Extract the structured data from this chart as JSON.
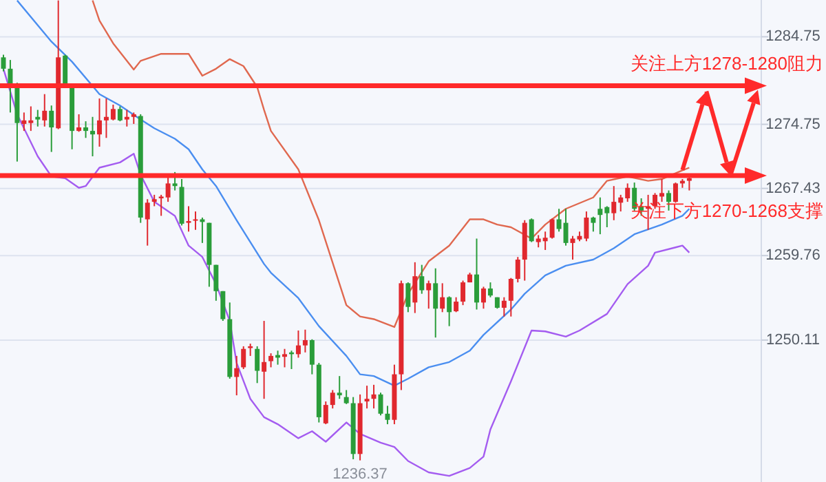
{
  "chart_data": {
    "type": "candlestick",
    "categories": [
      null,
      null,
      null,
      null,
      null,
      null,
      null,
      null,
      null,
      null,
      null,
      null,
      null,
      null,
      null,
      null,
      null,
      null,
      null,
      null,
      null,
      null,
      null,
      null,
      null,
      null,
      null,
      null,
      null,
      null,
      null,
      null,
      null,
      null,
      null,
      null,
      null,
      null,
      null,
      null,
      null,
      null,
      null,
      null,
      null,
      null,
      null,
      null,
      null,
      null,
      null,
      null,
      null,
      null,
      null,
      null,
      null,
      null,
      null,
      null,
      null,
      null,
      null,
      null,
      null,
      null,
      null,
      null,
      null,
      null,
      null,
      null,
      null,
      null,
      null,
      null,
      null,
      null,
      null,
      null,
      null,
      null,
      null,
      null,
      null,
      null,
      null,
      null,
      null,
      null,
      null,
      null,
      null,
      null,
      null,
      null,
      null,
      null,
      null,
      null,
      null
    ],
    "ohlc": [
      [
        1282.4,
        1282.7,
        1280.8,
        1281.1
      ],
      [
        1281.1,
        1282.1,
        1276.1,
        1279.3
      ],
      [
        1279.1,
        1279.5,
        1270.5,
        1274.9
      ],
      [
        1274.8,
        1276.1,
        1274.0,
        1275.2
      ],
      [
        1274.9,
        1276.8,
        1274.0,
        1275.2
      ],
      [
        1275.6,
        1276.4,
        1274.5,
        1275.3
      ],
      [
        1275.2,
        1278.2,
        1274.5,
        1276.3
      ],
      [
        1276.3,
        1276.9,
        1271.6,
        1274.4
      ],
      [
        1274.3,
        1288.9,
        1274.2,
        1282.4
      ],
      [
        1282.6,
        1282.7,
        1279.3,
        1279.4
      ],
      [
        1279.3,
        1279.3,
        1271.9,
        1274.0
      ],
      [
        1274.0,
        1275.9,
        1273.9,
        1274.4
      ],
      [
        1274.4,
        1275.1,
        1273.2,
        1274.0
      ],
      [
        1274.0,
        1275.6,
        1271.1,
        1273.6
      ],
      [
        1273.6,
        1277.7,
        1272.2,
        1275.2
      ],
      [
        1275.2,
        1277.7,
        1273.2,
        1275.6
      ],
      [
        1275.3,
        1277.0,
        1275.2,
        1276.5
      ],
      [
        1276.5,
        1276.8,
        1275.1,
        1275.2
      ],
      [
        1275.3,
        1276.4,
        1274.5,
        1275.6
      ],
      [
        1275.6,
        1276.1,
        1274.8,
        1275.9
      ],
      [
        1275.7,
        1275.9,
        1263.5,
        1264.1
      ],
      [
        1263.9,
        1266.2,
        1260.9,
        1265.8
      ],
      [
        1265.9,
        1266.7,
        1265.4,
        1266.2
      ],
      [
        1266.3,
        1266.7,
        1264.3,
        1266.5
      ],
      [
        1266.4,
        1268.8,
        1265.9,
        1268.0
      ],
      [
        1268.0,
        1269.3,
        1267.2,
        1267.7
      ],
      [
        1267.6,
        1268.5,
        1263.2,
        1263.4
      ],
      [
        1263.5,
        1265.4,
        1262.5,
        1263.7
      ],
      [
        1263.8,
        1264.8,
        1262.7,
        1263.9
      ],
      [
        1263.9,
        1264.1,
        1261.2,
        1263.6
      ],
      [
        1263.5,
        1263.5,
        1256.2,
        1258.7
      ],
      [
        1258.7,
        1258.7,
        1254.6,
        1255.7
      ],
      [
        1255.7,
        1255.7,
        1252.3,
        1252.5
      ],
      [
        1252.5,
        1254.4,
        1245.7,
        1245.9
      ],
      [
        1245.9,
        1248.3,
        1243.8,
        1246.9
      ],
      [
        1247.0,
        1249.4,
        1246.8,
        1249.1
      ],
      [
        1249.2,
        1249.7,
        1248.3,
        1249.4
      ],
      [
        1249.1,
        1249.4,
        1245.2,
        1246.6
      ],
      [
        1246.5,
        1252.3,
        1243.4,
        1247.6
      ],
      [
        1247.7,
        1248.6,
        1247.0,
        1248.3
      ],
      [
        1248.4,
        1248.9,
        1247.3,
        1248.1
      ],
      [
        1248.2,
        1249.1,
        1247.0,
        1248.5
      ],
      [
        1248.7,
        1248.9,
        1246.8,
        1248.5
      ],
      [
        1248.5,
        1251.2,
        1248.1,
        1249.5
      ],
      [
        1249.5,
        1251.3,
        1248.7,
        1250.1
      ],
      [
        1250.1,
        1250.2,
        1246.2,
        1247.3
      ],
      [
        1247.3,
        1247.5,
        1240.7,
        1241.3
      ],
      [
        1240.6,
        1243.1,
        1240.5,
        1242.7
      ],
      [
        1242.7,
        1244.4,
        1242.3,
        1244.1
      ],
      [
        1244.1,
        1246.0,
        1243.4,
        1243.8
      ],
      [
        1243.6,
        1244.4,
        1242.8,
        1242.9
      ],
      [
        1242.9,
        1243.6,
        1236.5,
        1237.1
      ],
      [
        1237.1,
        1243.9,
        1236.37,
        1242.9
      ],
      [
        1243.1,
        1244.9,
        1242.3,
        1243.4
      ],
      [
        1243.4,
        1245.0,
        1242.3,
        1243.9
      ],
      [
        1243.9,
        1244.1,
        1241.5,
        1241.7
      ],
      [
        1241.7,
        1242.6,
        1240.5,
        1241.0
      ],
      [
        1241.0,
        1247.3,
        1240.5,
        1246.2
      ],
      [
        1246.2,
        1256.9,
        1244.4,
        1256.6
      ],
      [
        1256.6,
        1256.7,
        1253.3,
        1253.9
      ],
      [
        1254.4,
        1259.0,
        1253.2,
        1257.4
      ],
      [
        1257.4,
        1258.7,
        1255.4,
        1255.8
      ],
      [
        1255.8,
        1256.9,
        1253.7,
        1256.6
      ],
      [
        1256.6,
        1258.3,
        1250.4,
        1253.7
      ],
      [
        1253.7,
        1256.6,
        1253.3,
        1255.0
      ],
      [
        1255.0,
        1255.1,
        1251.7,
        1253.3
      ],
      [
        1253.4,
        1255.0,
        1253.3,
        1254.5
      ],
      [
        1254.5,
        1256.9,
        1254.1,
        1256.7
      ],
      [
        1256.7,
        1257.8,
        1256.7,
        1257.6
      ],
      [
        1257.6,
        1261.7,
        1253.6,
        1254.4
      ],
      [
        1254.4,
        1256.2,
        1253.7,
        1256.0
      ],
      [
        1256.0,
        1256.7,
        1255.0,
        1255.2
      ],
      [
        1255.0,
        1255.0,
        1253.7,
        1253.8
      ],
      [
        1253.8,
        1255.0,
        1252.8,
        1254.6
      ],
      [
        1254.6,
        1257.2,
        1252.8,
        1257.1
      ],
      [
        1257.1,
        1259.6,
        1256.7,
        1259.3
      ],
      [
        1259.3,
        1263.8,
        1256.9,
        1263.5
      ],
      [
        1263.9,
        1264.0,
        1261.3,
        1261.4
      ],
      [
        1261.3,
        1262.1,
        1260.7,
        1261.7
      ],
      [
        1261.4,
        1262.5,
        1260.4,
        1261.8
      ],
      [
        1261.8,
        1264.0,
        1261.7,
        1263.9
      ],
      [
        1263.9,
        1265.1,
        1262.5,
        1262.8
      ],
      [
        1263.5,
        1265.1,
        1260.9,
        1261.2
      ],
      [
        1261.2,
        1262.0,
        1259.3,
        1261.7
      ],
      [
        1261.6,
        1262.5,
        1261.4,
        1262.0
      ],
      [
        1261.7,
        1264.8,
        1261.4,
        1264.1
      ],
      [
        1264.1,
        1264.2,
        1262.5,
        1263.5
      ],
      [
        1265.1,
        1266.4,
        1262.2,
        1264.4
      ],
      [
        1265.3,
        1265.4,
        1263.0,
        1264.6
      ],
      [
        1264.6,
        1267.7,
        1263.8,
        1265.9
      ],
      [
        1265.8,
        1266.7,
        1264.8,
        1266.4
      ],
      [
        1266.3,
        1268.0,
        1265.9,
        1267.5
      ],
      [
        1267.5,
        1268.1,
        1264.8,
        1265.1
      ],
      [
        1265.4,
        1266.3,
        1264.3,
        1264.9
      ],
      [
        1265.1,
        1266.7,
        1262.7,
        1265.4
      ],
      [
        1265.4,
        1266.9,
        1265.1,
        1266.7
      ],
      [
        1266.5,
        1268.5,
        1265.9,
        1266.9
      ],
      [
        1266.9,
        1267.2,
        1264.9,
        1265.9
      ],
      [
        1265.9,
        1268.1,
        1265.8,
        1268.0
      ],
      [
        1268.0,
        1268.5,
        1267.5,
        1268.3
      ],
      [
        1268.3,
        1269.0,
        1267.2,
        1268.6
      ]
    ],
    "colors": [
      "#2a9d3a",
      "#2a9d3a",
      "#2a9d3a",
      "#e0282e",
      "#e0282e",
      "#2a9d3a",
      "#e0282e",
      "#2a9d3a",
      "#e0282e",
      "#2a9d3a",
      "#2a9d3a",
      "#e0282e",
      "#2a9d3a",
      "#2a9d3a",
      "#e0282e",
      "#e0282e",
      "#e0282e",
      "#2a9d3a",
      "#e0282e",
      "#e0282e",
      "#2a9d3a",
      "#e0282e",
      "#e0282e",
      "#e0282e",
      "#e0282e",
      "#2a9d3a",
      "#2a9d3a",
      "#e0282e",
      "#e0282e",
      "#2a9d3a",
      "#2a9d3a",
      "#2a9d3a",
      "#2a9d3a",
      "#2a9d3a",
      "#e0282e",
      "#e0282e",
      "#e0282e",
      "#2a9d3a",
      "#e0282e",
      "#e0282e",
      "#2a9d3a",
      "#e0282e",
      "#2a9d3a",
      "#e0282e",
      "#e0282e",
      "#2a9d3a",
      "#2a9d3a",
      "#e0282e",
      "#e0282e",
      "#2a9d3a",
      "#2a9d3a",
      "#2a9d3a",
      "#e0282e",
      "#e0282e",
      "#e0282e",
      "#2a9d3a",
      "#2a9d3a",
      "#e0282e",
      "#e0282e",
      "#2a9d3a",
      "#e0282e",
      "#2a9d3a",
      "#e0282e",
      "#2a9d3a",
      "#e0282e",
      "#2a9d3a",
      "#e0282e",
      "#e0282e",
      "#e0282e",
      "#2a9d3a",
      "#e0282e",
      "#2a9d3a",
      "#2a9d3a",
      "#e0282e",
      "#e0282e",
      "#e0282e",
      "#e0282e",
      "#2a9d3a",
      "#e0282e",
      "#e0282e",
      "#e0282e",
      "#2a9d3a",
      "#2a9d3a",
      "#e0282e",
      "#e0282e",
      "#e0282e",
      "#2a9d3a",
      "#2a9d3a",
      "#2a9d3a",
      "#e0282e",
      "#e0282e",
      "#e0282e",
      "#2a9d3a",
      "#2a9d3a",
      "#e0282e",
      "#e0282e",
      "#e0282e",
      "#2a9d3a",
      "#e0282e",
      "#e0282e",
      "#e0282e"
    ],
    "series": [
      {
        "type": "line",
        "color": "#e0684f",
        "values": [
          null,
          null,
          null,
          null,
          null,
          null,
          null,
          null,
          null,
          null,
          null,
          null,
          null,
          1288.9,
          1286.6,
          null,
          1284.0,
          null,
          null,
          1281.0,
          1282.0,
          null,
          null,
          1282.8,
          null,
          null,
          null,
          1282.8,
          null,
          1280.3,
          null,
          1281.1,
          null,
          1282.2,
          null,
          1281.4,
          null,
          1279.0,
          1276.4,
          1274.0,
          null,
          null,
          null,
          1269.6,
          null,
          null,
          1263.8,
          null,
          null,
          null,
          1254.1,
          null,
          1252.8,
          null,
          1252.5,
          null,
          null,
          1251.6,
          null,
          1255.4,
          null,
          null,
          1259.1,
          null,
          null,
          1260.9,
          null,
          null,
          1263.9,
          null,
          1263.9,
          null,
          1263.3,
          null,
          1263.0,
          null,
          null,
          1261.7,
          null,
          1263.3,
          null,
          null,
          1265.1,
          null,
          null,
          null,
          1266.4,
          null,
          1268.3,
          null,
          null,
          1268.8,
          null,
          null,
          1268.3,
          null,
          1268.5,
          null,
          null,
          1269.5,
          1269.8
        ]
      },
      {
        "type": "line",
        "color": "#4a8ef0",
        "values": [
          null,
          null,
          1288.9,
          null,
          null,
          null,
          null,
          1284.2,
          null,
          null,
          1281.9,
          null,
          null,
          null,
          1278.2,
          null,
          null,
          1276.9,
          null,
          null,
          1275.3,
          null,
          1274.3,
          null,
          null,
          1273.1,
          null,
          1271.9,
          null,
          1269.6,
          null,
          1267.7,
          null,
          null,
          1263.8,
          null,
          null,
          null,
          1258.8,
          1257.8,
          null,
          null,
          null,
          1254.9,
          null,
          null,
          1251.7,
          null,
          null,
          null,
          1248.3,
          null,
          1246.2,
          null,
          1246.0,
          null,
          null,
          1244.9,
          null,
          1245.7,
          null,
          null,
          1247.0,
          null,
          null,
          1247.6,
          null,
          null,
          1248.9,
          null,
          1250.7,
          null,
          null,
          null,
          1253.6,
          null,
          1255.4,
          null,
          null,
          1257.5,
          null,
          null,
          1258.6,
          null,
          null,
          null,
          1259.3,
          null,
          null,
          1260.6,
          null,
          null,
          1262.2,
          null,
          null,
          null,
          1263.3,
          null,
          null,
          1264.3,
          1265.1
        ]
      },
      {
        "type": "line",
        "color": "#a45cf0",
        "values": [
          1281.1,
          null,
          1275.9,
          null,
          null,
          1271.1,
          null,
          1268.8,
          null,
          1268.6,
          null,
          1267.5,
          1267.7,
          null,
          1269.8,
          null,
          null,
          1270.4,
          null,
          1271.4,
          1269.0,
          null,
          1265.9,
          null,
          null,
          1264.3,
          null,
          1260.9,
          null,
          1259.6,
          null,
          1256.5,
          null,
          1252.3,
          1247.5,
          null,
          1243.4,
          null,
          1241.3,
          null,
          1240.5,
          null,
          null,
          1238.9,
          null,
          1239.7,
          null,
          1238.5,
          null,
          null,
          1240.7,
          null,
          1239.4,
          null,
          null,
          1238.4,
          null,
          1237.9,
          null,
          1236.3,
          null,
          null,
          1235.0,
          null,
          null,
          1234.6,
          null,
          null,
          1235.5,
          null,
          1236.8,
          1239.9,
          null,
          null,
          1245.4,
          null,
          null,
          1251.2,
          null,
          1251.1,
          null,
          null,
          1250.5,
          null,
          1251.2,
          null,
          null,
          null,
          1253.1,
          null,
          null,
          1256.5,
          null,
          null,
          1258.6,
          1260.1,
          null,
          null,
          1260.7,
          1260.9,
          1260.1
        ]
      }
    ],
    "ylim": [
      1233.9,
      1288.95
    ],
    "yticks": [
      1250.11,
      1259.76,
      1267.43,
      1274.75,
      1284.75
    ],
    "grid": "y",
    "ref_lines": [
      {
        "axis": "y",
        "value": 1279.15,
        "label": "关注上方1278-1280阻力",
        "color": "#ff2a2a"
      },
      {
        "axis": "y",
        "value": 1268.9,
        "label": "关注下方1270-1268支撑",
        "color": "#ff2a2a"
      }
    ],
    "annotations": [
      {
        "text": "1236.37",
        "y": 1236.37
      }
    ]
  }
}
